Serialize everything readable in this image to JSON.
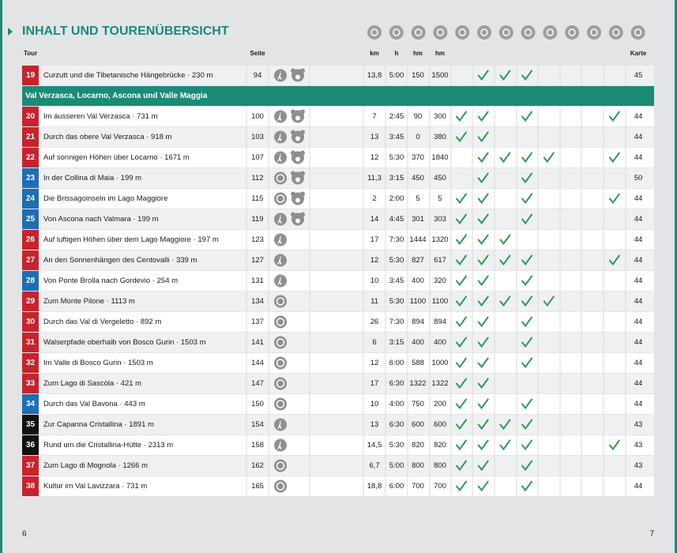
{
  "header": {
    "title": "INHALT UND TOURENÜBERSICHT"
  },
  "table": {
    "columns": {
      "tour": "Tour",
      "page": "Seite",
      "km": "km",
      "h": "h",
      "up": "hm",
      "down": "hm",
      "map": "Karte"
    },
    "groups": [
      {
        "rows": [
          {
            "no": 19,
            "color": "#c8232c",
            "name": "Curzutt und die Tibetanische Hängebrücke · 230 m",
            "page": 94,
            "walker": true,
            "bear": true,
            "km": "13,8",
            "h": "5:00",
            "up": 150,
            "down": 1500,
            "checks": [
              false,
              true,
              true,
              true,
              false,
              false,
              false,
              false
            ],
            "map": 45
          }
        ]
      },
      {
        "title": "Val Verzasca, Locarno, Ascona und Valle Maggia",
        "rows": [
          {
            "no": 20,
            "color": "#c8232c",
            "name": "Im äusseren Val Verzasca · 731 m",
            "page": 100,
            "walker": true,
            "bear": true,
            "km": "7",
            "h": "2:45",
            "up": 90,
            "down": 300,
            "checks": [
              true,
              true,
              false,
              true,
              false,
              false,
              false,
              true
            ],
            "map": 44
          },
          {
            "no": 21,
            "color": "#c8232c",
            "name": "Durch das obere Val Verzasca · 918 m",
            "page": 103,
            "walker": true,
            "bear": true,
            "km": "13",
            "h": "3:45",
            "up": 0,
            "down": 380,
            "checks": [
              true,
              true,
              false,
              false,
              false,
              false,
              false,
              false
            ],
            "map": 44
          },
          {
            "no": 22,
            "color": "#c8232c",
            "name": "Auf sonnigen Höhen über Locarno · 1671 m",
            "page": 107,
            "walker": true,
            "bear": true,
            "km": "12",
            "h": "5:30",
            "up": 370,
            "down": 1840,
            "checks": [
              false,
              true,
              true,
              true,
              true,
              false,
              false,
              true
            ],
            "map": 44
          },
          {
            "no": 23,
            "color": "#1f6db4",
            "name": "In der Collina di Maia · 199 m",
            "page": 112,
            "walker": false,
            "bear": true,
            "km": "11,3",
            "h": "3:15",
            "up": 450,
            "down": 450,
            "checks": [
              false,
              true,
              false,
              true,
              false,
              false,
              false,
              false
            ],
            "map": 50
          },
          {
            "no": 24,
            "color": "#1f6db4",
            "name": "Die Brissagoinseln im Lago Maggiore",
            "page": 115,
            "walker": false,
            "bear": true,
            "km": "2",
            "h": "2:00",
            "up": 5,
            "down": 5,
            "checks": [
              true,
              true,
              false,
              true,
              false,
              false,
              false,
              true
            ],
            "map": 44
          },
          {
            "no": 25,
            "color": "#1f6db4",
            "name": "Von Ascona nach Valmara · 199 m",
            "page": 119,
            "walker": true,
            "bear": true,
            "km": "14",
            "h": "4:45",
            "up": 301,
            "down": 303,
            "checks": [
              true,
              true,
              false,
              true,
              false,
              false,
              false,
              false
            ],
            "map": 44
          },
          {
            "no": 26,
            "color": "#c8232c",
            "name": "Auf luftigen Höhen über dem Lago Maggiore · 197 m",
            "page": 123,
            "walker": true,
            "bear": false,
            "km": "17",
            "h": "7:30",
            "up": 1444,
            "down": 1320,
            "checks": [
              true,
              true,
              true,
              false,
              false,
              false,
              false,
              false
            ],
            "map": 44
          },
          {
            "no": 27,
            "color": "#c8232c",
            "name": "An den Sonnenhängen des Centovalli · 339 m",
            "page": 127,
            "walker": true,
            "bear": false,
            "km": "12",
            "h": "5:30",
            "up": 827,
            "down": 617,
            "checks": [
              true,
              true,
              true,
              true,
              false,
              false,
              false,
              true
            ],
            "map": 44
          },
          {
            "no": 28,
            "color": "#1f6db4",
            "name": "Von Ponte Brolla nach Gordevio · 254 m",
            "page": 131,
            "walker": true,
            "bear": false,
            "km": "10",
            "h": "3:45",
            "up": 400,
            "down": 320,
            "checks": [
              true,
              true,
              false,
              true,
              false,
              false,
              false,
              false
            ],
            "map": 44
          },
          {
            "no": 29,
            "color": "#c8232c",
            "name": "Zum Monte Pilone · 1113 m",
            "page": 134,
            "walker": false,
            "bear": false,
            "km": "11",
            "h": "5:30",
            "up": 1100,
            "down": 1100,
            "checks": [
              true,
              true,
              true,
              true,
              true,
              false,
              false,
              false
            ],
            "map": 44
          },
          {
            "no": 30,
            "color": "#c8232c",
            "name": "Durch das Val di Vergeletto · 892 m",
            "page": 137,
            "walker": false,
            "bear": false,
            "km": "26",
            "h": "7:30",
            "up": 894,
            "down": 894,
            "checks": [
              true,
              true,
              false,
              true,
              false,
              false,
              false,
              false
            ],
            "map": 44
          },
          {
            "no": 31,
            "color": "#c8232c",
            "name": "Walserpfade oberhalb von Bosco Gurin · 1503 m",
            "page": 141,
            "walker": false,
            "bear": false,
            "km": "6",
            "h": "3:15",
            "up": 400,
            "down": 400,
            "checks": [
              true,
              true,
              false,
              true,
              false,
              false,
              false,
              false
            ],
            "map": 44
          },
          {
            "no": 32,
            "color": "#c8232c",
            "name": "Im Valle di Bosco Gurin · 1503 m",
            "page": 144,
            "walker": false,
            "bear": false,
            "km": "12",
            "h": "6:00",
            "up": 588,
            "down": 1000,
            "checks": [
              true,
              true,
              false,
              true,
              false,
              false,
              false,
              false
            ],
            "map": 44
          },
          {
            "no": 33,
            "color": "#c8232c",
            "name": "Zum Lago di Sascòla · 421 m",
            "page": 147,
            "walker": false,
            "bear": false,
            "km": "17",
            "h": "6:30",
            "up": 1322,
            "down": 1322,
            "checks": [
              true,
              true,
              false,
              false,
              false,
              false,
              false,
              false
            ],
            "map": 44
          },
          {
            "no": 34,
            "color": "#1f6db4",
            "name": "Durch das Val Bavona · 443 m",
            "page": 150,
            "walker": false,
            "bear": false,
            "km": "10",
            "h": "4:00",
            "up": 750,
            "down": 200,
            "checks": [
              true,
              true,
              false,
              true,
              false,
              false,
              false,
              false
            ],
            "map": 44
          },
          {
            "no": 35,
            "color": "#111111",
            "name": "Zur Capanna Cristallina · 1891 m",
            "page": 154,
            "walker": true,
            "bear": false,
            "km": "13",
            "h": "6:30",
            "up": 600,
            "down": 600,
            "checks": [
              true,
              true,
              true,
              true,
              false,
              false,
              false,
              false
            ],
            "map": 43
          },
          {
            "no": 36,
            "color": "#111111",
            "name": "Rund um die Cristallina-Hütte · 2313 m",
            "page": 158,
            "walker": true,
            "bear": false,
            "km": "14,5",
            "h": "5:30",
            "up": 820,
            "down": 820,
            "checks": [
              true,
              true,
              true,
              true,
              false,
              false,
              false,
              true
            ],
            "map": 43
          },
          {
            "no": 37,
            "color": "#c8232c",
            "name": "Zum Lago di Mognola · 1266 m",
            "page": 162,
            "walker": false,
            "bear": false,
            "km": "6,7",
            "h": "5:00",
            "up": 800,
            "down": 800,
            "checks": [
              true,
              true,
              false,
              true,
              false,
              false,
              false,
              false
            ],
            "map": 43
          },
          {
            "no": 38,
            "color": "#c8232c",
            "name": "Kultur im Val Lavizzara · 731 m",
            "page": 165,
            "walker": false,
            "bear": false,
            "km": "18,8",
            "h": "6:00",
            "up": 700,
            "down": 700,
            "checks": [
              true,
              true,
              false,
              true,
              false,
              false,
              false,
              false
            ],
            "map": 44
          }
        ]
      }
    ]
  },
  "footer": {
    "left_page": "6",
    "right_page": "7"
  }
}
